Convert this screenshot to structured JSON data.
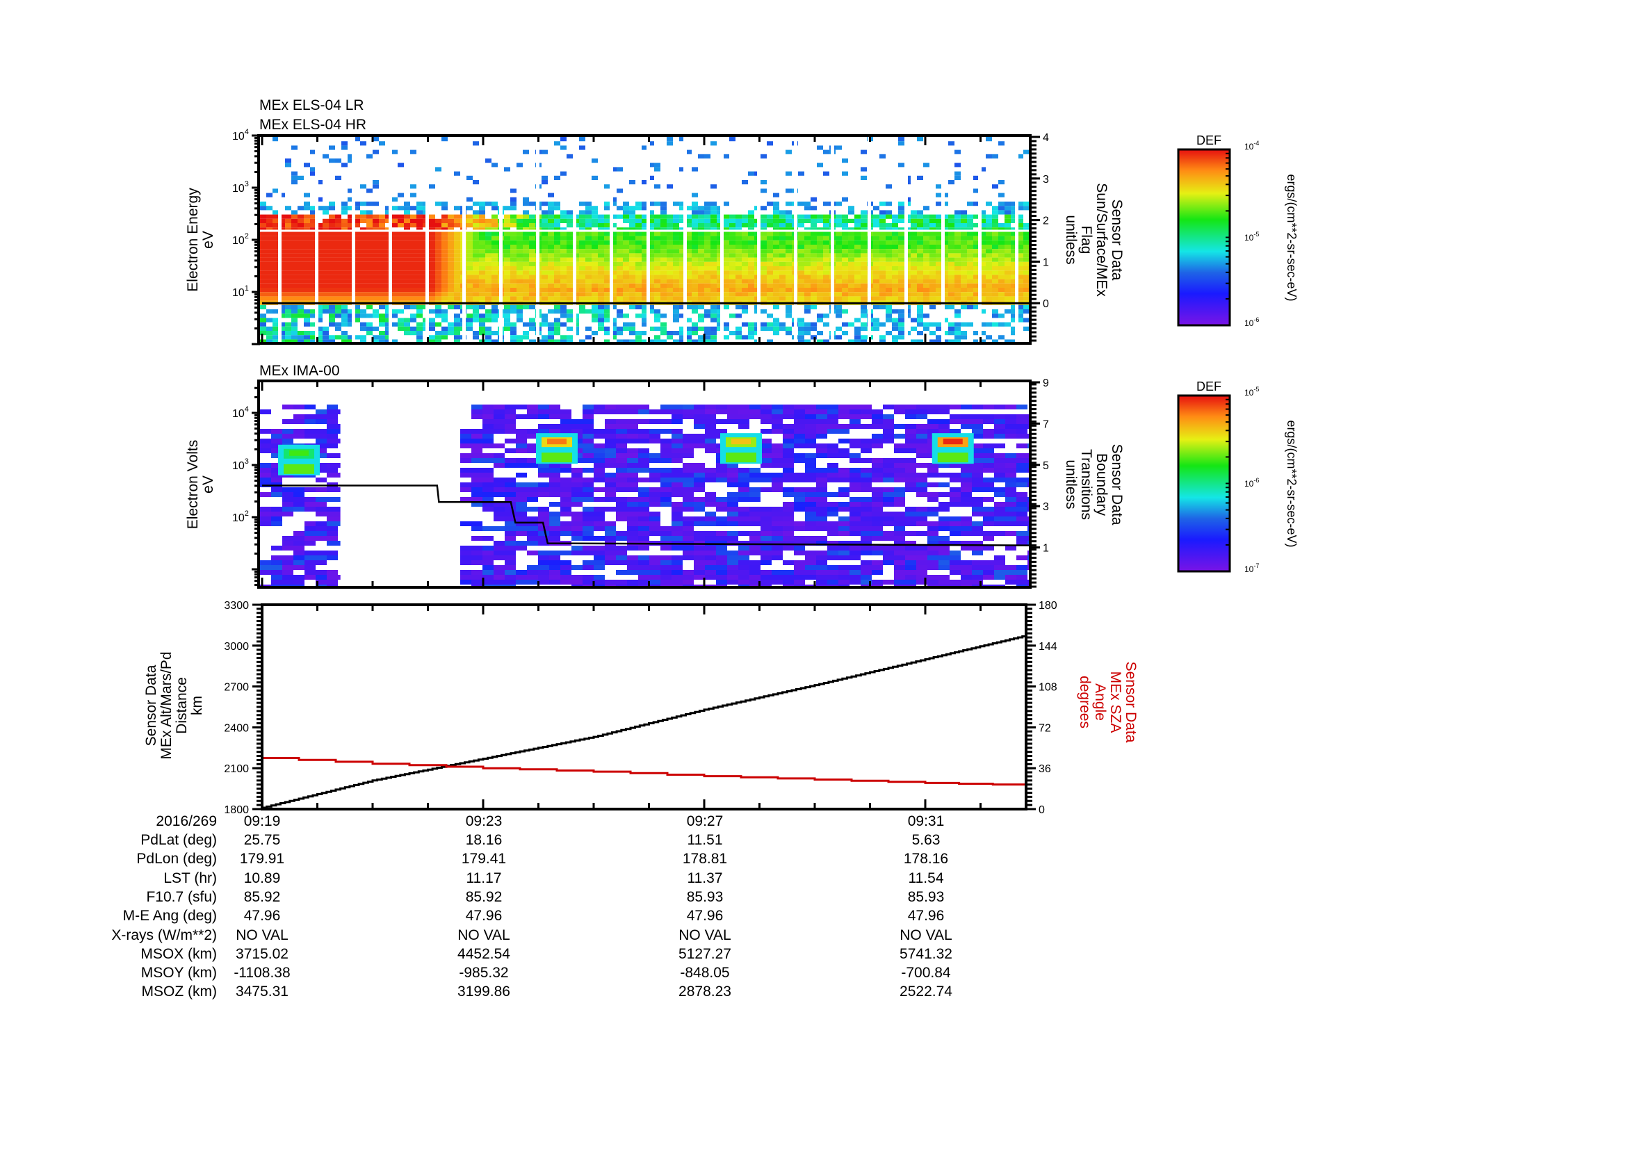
{
  "chart_data": [
    {
      "type": "heatmap",
      "panel": "top",
      "titles": [
        "MEx ELS-04 LR",
        "MEx ELS-04 HR"
      ],
      "ylabel": [
        "Electron Energy",
        "eV"
      ],
      "yscale": "log",
      "ylim": [
        1,
        10000
      ],
      "yticks": [
        {
          "label": "10",
          "exp": "1",
          "value": 10
        },
        {
          "label": "10",
          "exp": "2",
          "value": 100
        },
        {
          "label": "10",
          "exp": "3",
          "value": 1000
        },
        {
          "label": "10",
          "exp": "4",
          "value": 10000
        }
      ],
      "y2label": [
        "Sensor Data",
        "Sun/Surface/MEx",
        "Flag",
        "unitless"
      ],
      "y2lim": [
        -0.95,
        4
      ],
      "y2ticks": [
        0,
        1,
        2,
        3,
        4
      ],
      "overlay_line": {
        "name": "Sun/Surface/MEx Flag",
        "color": "#000000",
        "x": [
          "09:19",
          "09:32:50"
        ],
        "y": [
          0,
          0
        ]
      },
      "colorbar": {
        "title": "DEF",
        "min_label": "10",
        "min_exp": "-6",
        "mid_label": "10",
        "mid_exp": "-5",
        "max_label": "10",
        "max_exp": "-4",
        "units": "ergs/(cm**2-sr-sec-eV)"
      },
      "description": "Intense red (>1e-4) flux at 6-150 eV from 09:19 to ~09:24, transitioning to green/yellow (~1e-5) after 09:25; sparse blue counts above 500 eV; periodic white data gaps roughly every 40 s"
    },
    {
      "type": "heatmap",
      "panel": "middle",
      "titles": [
        "MEx IMA-00"
      ],
      "ylabel": [
        "Electron Volts",
        "eV"
      ],
      "yscale": "log",
      "ylim": [
        4,
        40000
      ],
      "yticks": [
        {
          "label": "10",
          "exp": "2",
          "value": 100
        },
        {
          "label": "10",
          "exp": "3",
          "value": 1000
        },
        {
          "label": "10",
          "exp": "4",
          "value": 10000
        }
      ],
      "y2label": [
        "Sensor Data",
        "Boundary",
        "Transitions",
        "unitless"
      ],
      "y2lim": [
        -0.9,
        9
      ],
      "y2ticks": [
        1,
        3,
        5,
        7,
        9
      ],
      "overlay_line": {
        "name": "Boundary Transitions",
        "color": "#000000",
        "x": [
          "09:19",
          "09:22:10",
          "09:22:12",
          "09:23:30",
          "09:23:35",
          "09:24:05",
          "09:24:10",
          "09:32:50"
        ],
        "y": [
          4.0,
          4.0,
          3.2,
          3.2,
          2.2,
          2.2,
          1.2,
          1.1
        ]
      },
      "data_gap": [
        "09:20:25",
        "09:22:30"
      ],
      "hotspots": [
        {
          "time": "09:24:20",
          "energy_eV": 2500,
          "level": "orange"
        },
        {
          "time": "09:27:40",
          "energy_eV": 2500,
          "level": "yellow"
        },
        {
          "time": "09:31:30",
          "energy_eV": 2500,
          "level": "red"
        },
        {
          "time": "09:19:40",
          "energy_eV": 1500,
          "level": "green"
        }
      ],
      "colorbar": {
        "title": "DEF",
        "min_label": "10",
        "min_exp": "-7",
        "mid_label": "10",
        "mid_exp": "-6",
        "max_label": "10",
        "max_exp": "-5",
        "units": "ergs/(cm**2-sr-sec-eV)"
      }
    },
    {
      "type": "line",
      "panel": "bottom",
      "ylabel": [
        "Sensor Data",
        "MEx Alt/Mars/Pd",
        "Distance",
        "km"
      ],
      "ylim": [
        1800,
        3300
      ],
      "yticks": [
        1800,
        2100,
        2400,
        2700,
        3000,
        3300
      ],
      "y2label": [
        "Sensor Data",
        "MEx SZA",
        "Angle",
        "degrees"
      ],
      "y2lim": [
        0,
        180
      ],
      "y2ticks": [
        0,
        36,
        72,
        108,
        144,
        180
      ],
      "y2color": "#cc0000",
      "x": [
        "09:19",
        "09:21",
        "09:23",
        "09:25",
        "09:27",
        "09:29",
        "09:31",
        "09:32:50"
      ],
      "series": [
        {
          "name": "MEx Alt/Mars/Pd Distance (km)",
          "axis": "left",
          "color": "#000000",
          "values": [
            1810,
            2010,
            2170,
            2330,
            2530,
            2710,
            2900,
            3075
          ]
        },
        {
          "name": "MEx SZA Angle (degrees)",
          "axis": "right",
          "color": "#cc0000",
          "values": [
            45,
            40,
            36,
            33,
            29,
            26,
            23,
            21
          ]
        }
      ]
    }
  ],
  "xaxis": {
    "date_label": "2016/269",
    "ticks": [
      "09:19",
      "09:23",
      "09:27",
      "09:31"
    ],
    "range": [
      "09:19",
      "09:32:50"
    ]
  },
  "ephemeris": {
    "rows": [
      {
        "label": "PdLat (deg)",
        "values": [
          "25.75",
          "18.16",
          "11.51",
          "5.63"
        ]
      },
      {
        "label": "PdLon (deg)",
        "values": [
          "179.91",
          "179.41",
          "178.81",
          "178.16"
        ]
      },
      {
        "label": "LST (hr)",
        "values": [
          "10.89",
          "11.17",
          "11.37",
          "11.54"
        ]
      },
      {
        "label": "F10.7 (sfu)",
        "values": [
          "85.92",
          "85.92",
          "85.93",
          "85.93"
        ]
      },
      {
        "label": "M-E Ang (deg)",
        "values": [
          "47.96",
          "47.96",
          "47.96",
          "47.96"
        ]
      },
      {
        "label": "X-rays (W/m**2)",
        "values": [
          "NO VAL",
          "NO VAL",
          "NO VAL",
          "NO VAL"
        ]
      },
      {
        "label": "MSOX (km)",
        "values": [
          "3715.02",
          "4452.54",
          "5127.27",
          "5741.32"
        ]
      },
      {
        "label": "MSOY (km)",
        "values": [
          "-1108.38",
          "-985.32",
          "-848.05",
          "-700.84"
        ]
      },
      {
        "label": "MSOZ (km)",
        "values": [
          "3475.31",
          "3199.86",
          "2878.23",
          "2522.74"
        ]
      }
    ]
  }
}
